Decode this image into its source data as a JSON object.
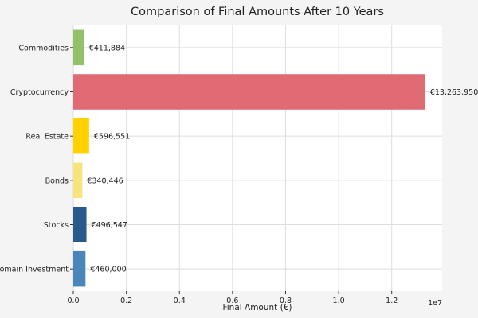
{
  "chart_data": {
    "type": "bar",
    "orientation": "horizontal",
    "title": "Comparison of Final Amounts After 10 Years",
    "xlabel": "Final Amount (€)",
    "ylabel": "",
    "x_scale_note": "1e7",
    "xlim": [
      0,
      1.39
    ],
    "grid": true,
    "x_ticks": [
      0.0,
      0.2,
      0.4,
      0.6,
      0.8,
      1.0,
      1.2
    ],
    "x_tick_labels": [
      "0.0",
      "0.2",
      "0.4",
      "0.6",
      "0.8",
      "1.0",
      "1.2"
    ],
    "categories": [
      "Domain Investment",
      "Stocks",
      "Bonds",
      "Real Estate",
      "Cryptocurrency",
      "Commodities"
    ],
    "values": [
      460000,
      496547,
      340446,
      596551,
      13263950,
      411884
    ],
    "value_labels": [
      "€460,000",
      "€496,547",
      "€340,446",
      "€596,551",
      "€13,263,950",
      "€411,884"
    ],
    "colors": [
      "#4a86b9",
      "#2a5a8c",
      "#f7e47c",
      "#ffd200",
      "#e06b75",
      "#93c06b"
    ]
  }
}
